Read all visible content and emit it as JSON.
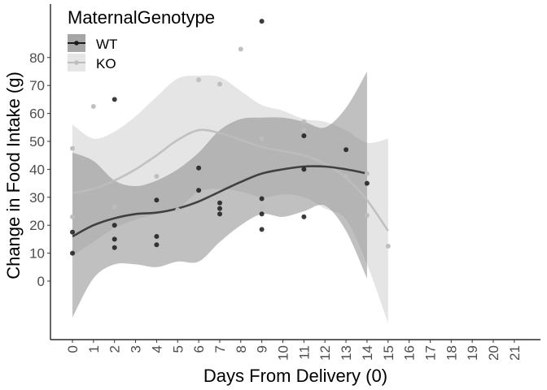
{
  "chart_data": {
    "type": "scatter",
    "title": "",
    "xlabel": "Days From Delivery (0)",
    "ylabel": "Change in Food Intake (g)",
    "xlim": [
      -1,
      22
    ],
    "ylim": [
      -20,
      100
    ],
    "x_ticks": [
      0,
      1,
      2,
      3,
      4,
      5,
      6,
      7,
      8,
      9,
      10,
      11,
      12,
      13,
      14,
      15,
      16,
      17,
      18,
      19,
      20,
      21
    ],
    "x_tick_labels": [
      "0",
      "1",
      "2",
      "3",
      "4",
      "5",
      "6",
      "7",
      "8",
      "9",
      "10",
      "11",
      "12",
      "13",
      "14",
      "15",
      "16",
      "17",
      "18",
      "19",
      "20",
      "21"
    ],
    "y_ticks": [
      0,
      10,
      20,
      30,
      40,
      50,
      60,
      70,
      80
    ],
    "y_tick_labels": [
      "0",
      "10",
      "20",
      "30",
      "40",
      "50",
      "60",
      "70",
      "80"
    ],
    "grid": false,
    "legend": {
      "title": "MaternalGenotype",
      "position": "top-left",
      "entries": [
        "WT",
        "KO"
      ]
    },
    "series": [
      {
        "name": "WT",
        "color": "#1a1a1a",
        "band_color": "#8c8c8c",
        "band_opacity": 0.55,
        "points": [
          {
            "x": 0,
            "y": 17.5
          },
          {
            "x": 0,
            "y": 10
          },
          {
            "x": 2,
            "y": 65
          },
          {
            "x": 2,
            "y": 20
          },
          {
            "x": 2,
            "y": 15
          },
          {
            "x": 2,
            "y": 12
          },
          {
            "x": 4,
            "y": 29
          },
          {
            "x": 4,
            "y": 16
          },
          {
            "x": 4,
            "y": 13
          },
          {
            "x": 6,
            "y": 40.5
          },
          {
            "x": 6,
            "y": 32.5
          },
          {
            "x": 7,
            "y": 28
          },
          {
            "x": 7,
            "y": 26
          },
          {
            "x": 7,
            "y": 24
          },
          {
            "x": 9,
            "y": 93
          },
          {
            "x": 9,
            "y": 29.5
          },
          {
            "x": 9,
            "y": 24
          },
          {
            "x": 9,
            "y": 18.5
          },
          {
            "x": 11,
            "y": 52
          },
          {
            "x": 11,
            "y": 40
          },
          {
            "x": 11,
            "y": 23
          },
          {
            "x": 13,
            "y": 47
          },
          {
            "x": 14,
            "y": 35
          }
        ],
        "smooth": [
          {
            "x": 0,
            "y": 16
          },
          {
            "x": 1,
            "y": 20
          },
          {
            "x": 2,
            "y": 22.5
          },
          {
            "x": 3,
            "y": 24
          },
          {
            "x": 4,
            "y": 24.5
          },
          {
            "x": 5,
            "y": 26
          },
          {
            "x": 6,
            "y": 28.5
          },
          {
            "x": 7,
            "y": 32
          },
          {
            "x": 8,
            "y": 35.5
          },
          {
            "x": 9,
            "y": 38.5
          },
          {
            "x": 10,
            "y": 40
          },
          {
            "x": 11,
            "y": 41
          },
          {
            "x": 12,
            "y": 41
          },
          {
            "x": 13,
            "y": 40
          },
          {
            "x": 14,
            "y": 38.5
          }
        ],
        "upper": [
          {
            "x": 0,
            "y": 46
          },
          {
            "x": 1,
            "y": 43
          },
          {
            "x": 2,
            "y": 36
          },
          {
            "x": 3,
            "y": 34
          },
          {
            "x": 4,
            "y": 36
          },
          {
            "x": 5,
            "y": 40
          },
          {
            "x": 6,
            "y": 46
          },
          {
            "x": 7,
            "y": 54
          },
          {
            "x": 8,
            "y": 58
          },
          {
            "x": 9,
            "y": 58.5
          },
          {
            "x": 10,
            "y": 58.5
          },
          {
            "x": 11,
            "y": 57
          },
          {
            "x": 12,
            "y": 55
          },
          {
            "x": 13,
            "y": 62
          },
          {
            "x": 14,
            "y": 75
          }
        ],
        "lower": [
          {
            "x": 0,
            "y": -13
          },
          {
            "x": 1,
            "y": 1
          },
          {
            "x": 2,
            "y": 6
          },
          {
            "x": 3,
            "y": 6
          },
          {
            "x": 4,
            "y": 5
          },
          {
            "x": 5,
            "y": 7
          },
          {
            "x": 6,
            "y": 7
          },
          {
            "x": 7,
            "y": 14
          },
          {
            "x": 8,
            "y": 20
          },
          {
            "x": 9,
            "y": 24
          },
          {
            "x": 10,
            "y": 23
          },
          {
            "x": 11,
            "y": 25
          },
          {
            "x": 12,
            "y": 27
          },
          {
            "x": 13,
            "y": 18
          },
          {
            "x": 14,
            "y": 1
          }
        ]
      },
      {
        "name": "KO",
        "color": "#bdbdbd",
        "band_color": "#d3d3d3",
        "band_opacity": 0.6,
        "points": [
          {
            "x": 0,
            "y": 47.5
          },
          {
            "x": 0,
            "y": 23
          },
          {
            "x": 1,
            "y": 62.5
          },
          {
            "x": 2,
            "y": 26.5
          },
          {
            "x": 2,
            "y": 14.5
          },
          {
            "x": 4,
            "y": 37.5
          },
          {
            "x": 5,
            "y": 25.5
          },
          {
            "x": 6,
            "y": 72
          },
          {
            "x": 7,
            "y": 70.5
          },
          {
            "x": 8,
            "y": 83
          },
          {
            "x": 9,
            "y": 51
          },
          {
            "x": 9,
            "y": 26.5
          },
          {
            "x": 11,
            "y": 57
          },
          {
            "x": 11,
            "y": 54
          },
          {
            "x": 13,
            "y": 37.5
          },
          {
            "x": 14,
            "y": 38.5
          },
          {
            "x": 14,
            "y": 23.5
          },
          {
            "x": 15,
            "y": 12.5
          }
        ],
        "smooth": [
          {
            "x": 0,
            "y": 31.5
          },
          {
            "x": 1,
            "y": 33
          },
          {
            "x": 2,
            "y": 36
          },
          {
            "x": 3,
            "y": 40
          },
          {
            "x": 4,
            "y": 45
          },
          {
            "x": 5,
            "y": 50.5
          },
          {
            "x": 6,
            "y": 54
          },
          {
            "x": 7,
            "y": 53
          },
          {
            "x": 8,
            "y": 50.5
          },
          {
            "x": 9,
            "y": 48
          },
          {
            "x": 10,
            "y": 46.5
          },
          {
            "x": 11,
            "y": 45
          },
          {
            "x": 12,
            "y": 42
          },
          {
            "x": 13,
            "y": 37
          },
          {
            "x": 14,
            "y": 29
          },
          {
            "x": 15,
            "y": 18
          }
        ],
        "upper": [
          {
            "x": 0,
            "y": 56
          },
          {
            "x": 1,
            "y": 51
          },
          {
            "x": 2,
            "y": 53.5
          },
          {
            "x": 3,
            "y": 59
          },
          {
            "x": 4,
            "y": 66
          },
          {
            "x": 5,
            "y": 72.5
          },
          {
            "x": 6,
            "y": 73.5
          },
          {
            "x": 7,
            "y": 73
          },
          {
            "x": 8,
            "y": 68
          },
          {
            "x": 9,
            "y": 63
          },
          {
            "x": 10,
            "y": 61
          },
          {
            "x": 11,
            "y": 58
          },
          {
            "x": 12,
            "y": 57
          },
          {
            "x": 13,
            "y": 54
          },
          {
            "x": 14,
            "y": 49.5
          },
          {
            "x": 15,
            "y": 51
          }
        ],
        "lower": [
          {
            "x": 0,
            "y": 9
          },
          {
            "x": 1,
            "y": 14
          },
          {
            "x": 2,
            "y": 19
          },
          {
            "x": 3,
            "y": 22
          },
          {
            "x": 4,
            "y": 24
          },
          {
            "x": 5,
            "y": 26
          },
          {
            "x": 6,
            "y": 32
          },
          {
            "x": 7,
            "y": 33
          },
          {
            "x": 8,
            "y": 32
          },
          {
            "x": 9,
            "y": 30
          },
          {
            "x": 10,
            "y": 31
          },
          {
            "x": 11,
            "y": 30
          },
          {
            "x": 12,
            "y": 26
          },
          {
            "x": 13,
            "y": 22
          },
          {
            "x": 14,
            "y": 6
          },
          {
            "x": 15,
            "y": -15
          }
        ]
      }
    ]
  }
}
